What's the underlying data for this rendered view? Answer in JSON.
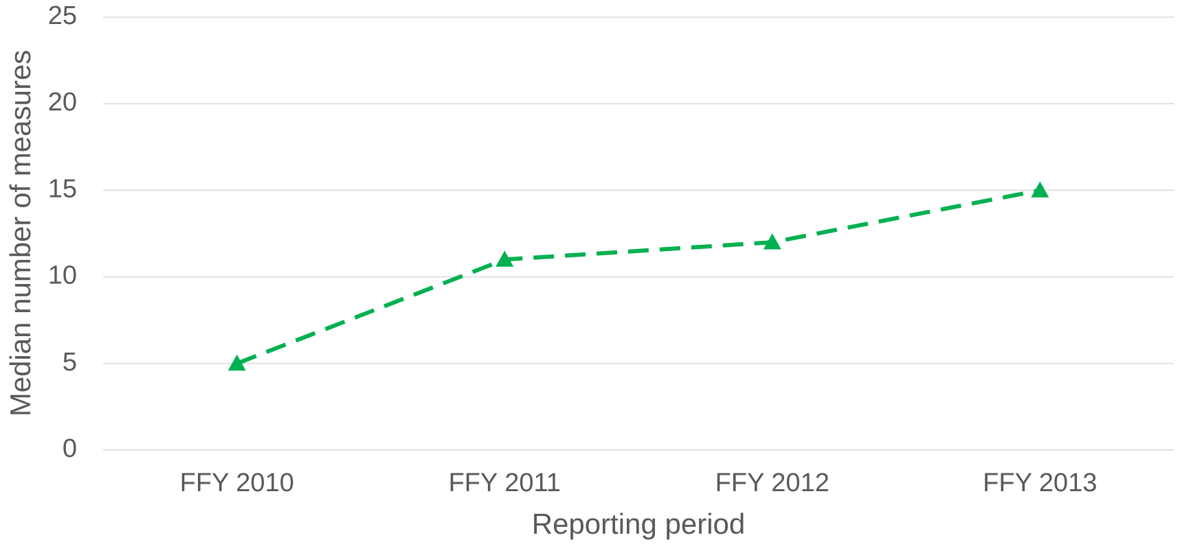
{
  "chart_data": {
    "type": "line",
    "x_label": "Reporting period",
    "y_label": "Median number of measures",
    "categories": [
      "FFY 2010",
      "FFY 2011",
      "FFY 2012",
      "FFY 2013"
    ],
    "series": [
      {
        "name": "Median number of measures",
        "color": "#00b050",
        "values": [
          5,
          11,
          12,
          15
        ]
      }
    ],
    "ylim": [
      0,
      25
    ],
    "yticks": [
      0,
      5,
      10,
      15,
      20,
      25
    ],
    "grid": true
  }
}
